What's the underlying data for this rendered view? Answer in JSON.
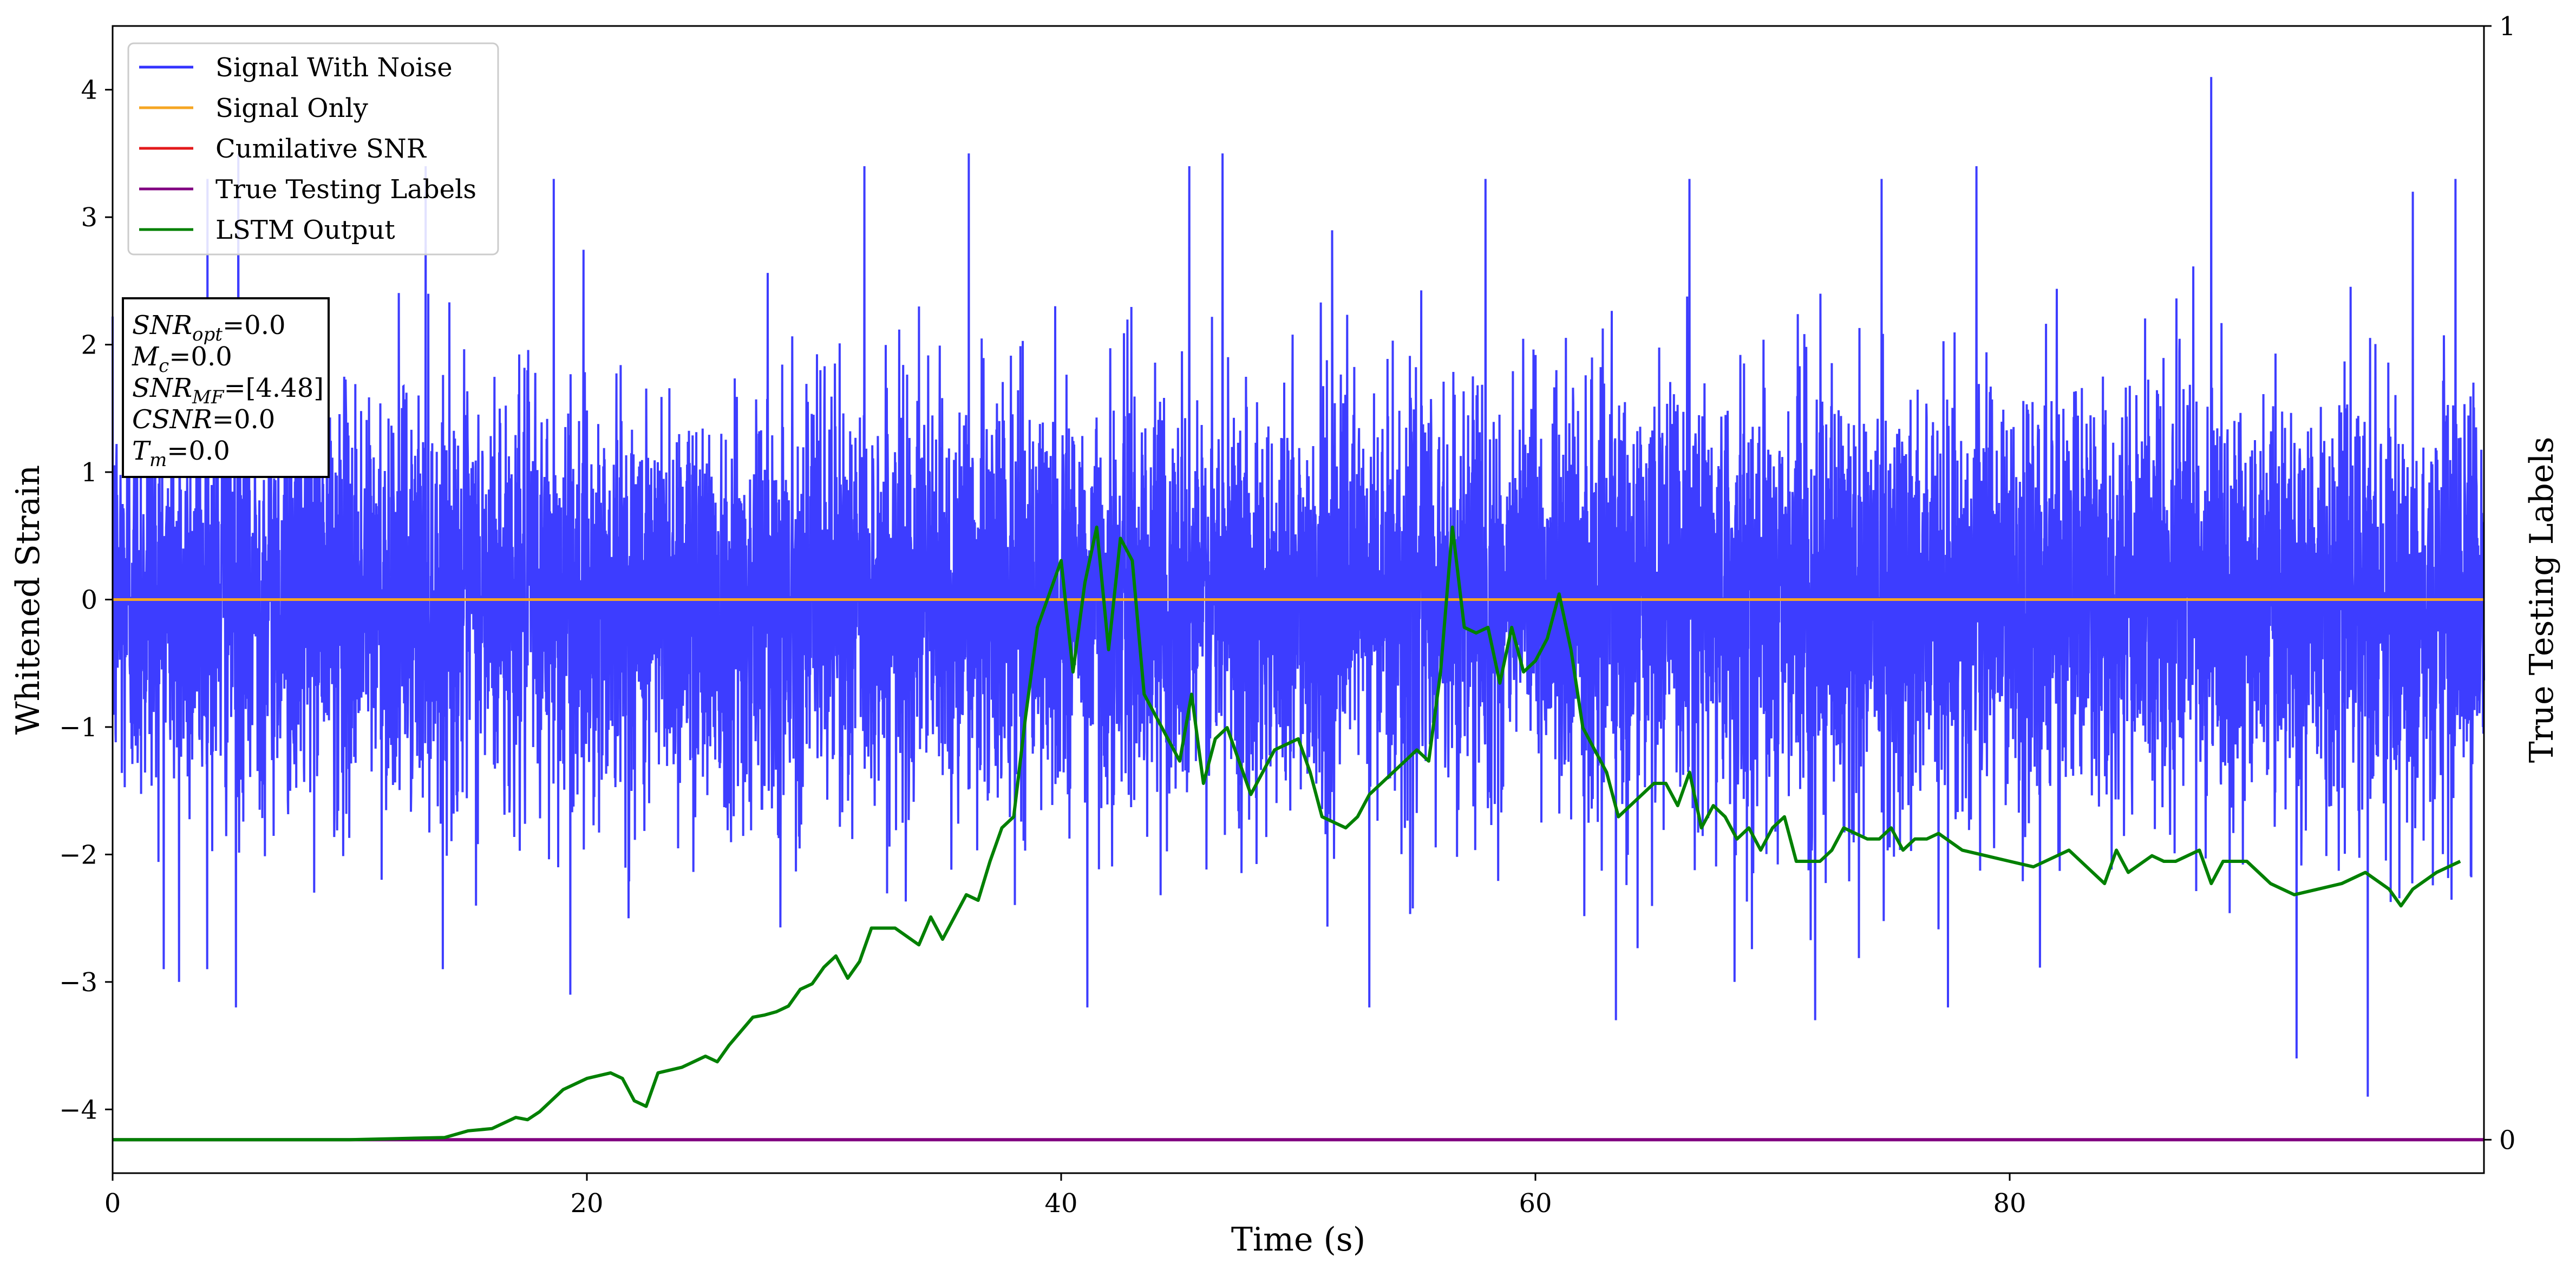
{
  "chart_data": {
    "type": "line",
    "xlabel": "Time (s)",
    "ylabel": "Whitened Strain",
    "y2label": "True Testing Labels",
    "xlim": [
      0,
      100
    ],
    "ylim": [
      -4.5,
      4.5
    ],
    "y2lim": [
      -0.03,
      1.0
    ],
    "x_ticks": [
      0,
      20,
      40,
      60,
      80
    ],
    "y_ticks": [
      -4,
      -3,
      -2,
      -1,
      0,
      1,
      2,
      3,
      4
    ],
    "y2_ticks": [
      0,
      1
    ],
    "legend": {
      "placement": "top-left",
      "entries": [
        "Signal With Noise",
        "Signal Only",
        "Cumilative SNR",
        "True Testing Labels",
        "LSTM Output"
      ]
    },
    "annotation": {
      "lines": [
        {
          "sym": "SNR",
          "sub": "opt",
          "val": "=0.0"
        },
        {
          "sym": "M",
          "sub": "c",
          "val": "=0.0"
        },
        {
          "sym": "SNR",
          "sub": "MF",
          "val": "=[4.48]"
        },
        {
          "sym": "CSNR",
          "sub": "",
          "val": "=0.0"
        },
        {
          "sym": "T",
          "sub": "m",
          "val": "=0.0"
        }
      ]
    },
    "series": [
      {
        "name": "Signal With Noise",
        "color": "#3333ff",
        "axis": "left",
        "description": "dense whitened noise, std approx 0.8, envelope about -3.9 to 4.1",
        "noise_std": 0.8,
        "peaks_x": [
          4.0,
          5.3,
          13.2,
          18.6,
          31.7,
          36.1,
          45.4,
          46.8,
          57.9,
          66.5,
          74.6,
          78.6,
          88.5,
          97.0,
          98.8
        ],
        "peaks_y": [
          3.3,
          3.5,
          3.4,
          3.3,
          3.4,
          3.5,
          3.4,
          3.5,
          3.3,
          3.3,
          3.3,
          3.4,
          4.1,
          3.2,
          3.3
        ],
        "troughs_x": [
          2.8,
          5.2,
          19.3,
          41.1,
          53.0,
          63.4,
          68.4,
          71.8,
          77.4,
          92.1,
          95.1
        ],
        "troughs_y": [
          -3.0,
          -3.2,
          -3.1,
          -3.2,
          -3.2,
          -3.3,
          -3.0,
          -3.3,
          -3.2,
          -3.6,
          -3.9
        ]
      },
      {
        "name": "Signal Only",
        "color": "#f5a623",
        "axis": "left",
        "x": [
          0,
          100
        ],
        "y": [
          0,
          0
        ]
      },
      {
        "name": "Cumilative SNR",
        "color": "#e31a1c",
        "axis": "left",
        "x": [],
        "y": []
      },
      {
        "name": "True Testing Labels",
        "color": "#800080",
        "axis": "right",
        "x": [
          0,
          100
        ],
        "y": [
          0,
          0
        ]
      },
      {
        "name": "LSTM Output",
        "color": "#008000",
        "axis": "right",
        "x": [
          0,
          10,
          12,
          14,
          15,
          16,
          17,
          17.5,
          18,
          19,
          20,
          21,
          21.5,
          22,
          22.5,
          23,
          24,
          25,
          25.5,
          26,
          27,
          27.5,
          28,
          28.5,
          29,
          29.5,
          30,
          30.5,
          31,
          31.5,
          32,
          33,
          34,
          34.5,
          35,
          35.5,
          36,
          36.5,
          37,
          37.5,
          38,
          38.5,
          39,
          40,
          40.5,
          41,
          41.5,
          42,
          42.5,
          43,
          43.5,
          44,
          45,
          45.5,
          46,
          46.5,
          47,
          48,
          48.5,
          49,
          50,
          50.5,
          51,
          52,
          52.5,
          53,
          54,
          54.5,
          55,
          55.5,
          56,
          56.5,
          57,
          57.5,
          58,
          58.5,
          59,
          59.5,
          60,
          60.5,
          61,
          61.5,
          62,
          63,
          63.5,
          64,
          65,
          65.5,
          66,
          66.5,
          67,
          67.5,
          68,
          68.5,
          69,
          69.5,
          70,
          70.5,
          71,
          72,
          72.5,
          73,
          74,
          74.5,
          75,
          75.5,
          76,
          76.5,
          77,
          78,
          79,
          80,
          81,
          82,
          82.5,
          83,
          84,
          84.5,
          85,
          86,
          86.5,
          87,
          88,
          88.5,
          89,
          90,
          90.5,
          91,
          92,
          93,
          94,
          95,
          96,
          96.5,
          97,
          98,
          99
        ],
        "y": [
          0.0,
          0.0,
          0.001,
          0.002,
          0.008,
          0.01,
          0.02,
          0.018,
          0.025,
          0.045,
          0.055,
          0.06,
          0.055,
          0.035,
          0.03,
          0.06,
          0.065,
          0.075,
          0.07,
          0.085,
          0.11,
          0.112,
          0.115,
          0.12,
          0.135,
          0.14,
          0.155,
          0.165,
          0.145,
          0.16,
          0.19,
          0.19,
          0.175,
          0.2,
          0.18,
          0.2,
          0.22,
          0.215,
          0.25,
          0.28,
          0.29,
          0.38,
          0.46,
          0.52,
          0.42,
          0.5,
          0.55,
          0.44,
          0.54,
          0.52,
          0.4,
          0.38,
          0.34,
          0.4,
          0.32,
          0.36,
          0.37,
          0.31,
          0.33,
          0.35,
          0.36,
          0.33,
          0.29,
          0.28,
          0.29,
          0.31,
          0.33,
          0.34,
          0.35,
          0.34,
          0.42,
          0.55,
          0.46,
          0.455,
          0.46,
          0.41,
          0.46,
          0.42,
          0.43,
          0.45,
          0.49,
          0.44,
          0.37,
          0.33,
          0.29,
          0.3,
          0.32,
          0.32,
          0.3,
          0.33,
          0.28,
          0.3,
          0.29,
          0.27,
          0.28,
          0.26,
          0.28,
          0.29,
          0.25,
          0.25,
          0.26,
          0.28,
          0.27,
          0.27,
          0.28,
          0.26,
          0.27,
          0.27,
          0.275,
          0.26,
          0.255,
          0.25,
          0.245,
          0.255,
          0.26,
          0.25,
          0.23,
          0.26,
          0.24,
          0.255,
          0.25,
          0.25,
          0.26,
          0.23,
          0.25,
          0.25,
          0.24,
          0.23,
          0.22,
          0.225,
          0.23,
          0.24,
          0.225,
          0.21,
          0.225,
          0.24,
          0.25
        ]
      }
    ]
  }
}
